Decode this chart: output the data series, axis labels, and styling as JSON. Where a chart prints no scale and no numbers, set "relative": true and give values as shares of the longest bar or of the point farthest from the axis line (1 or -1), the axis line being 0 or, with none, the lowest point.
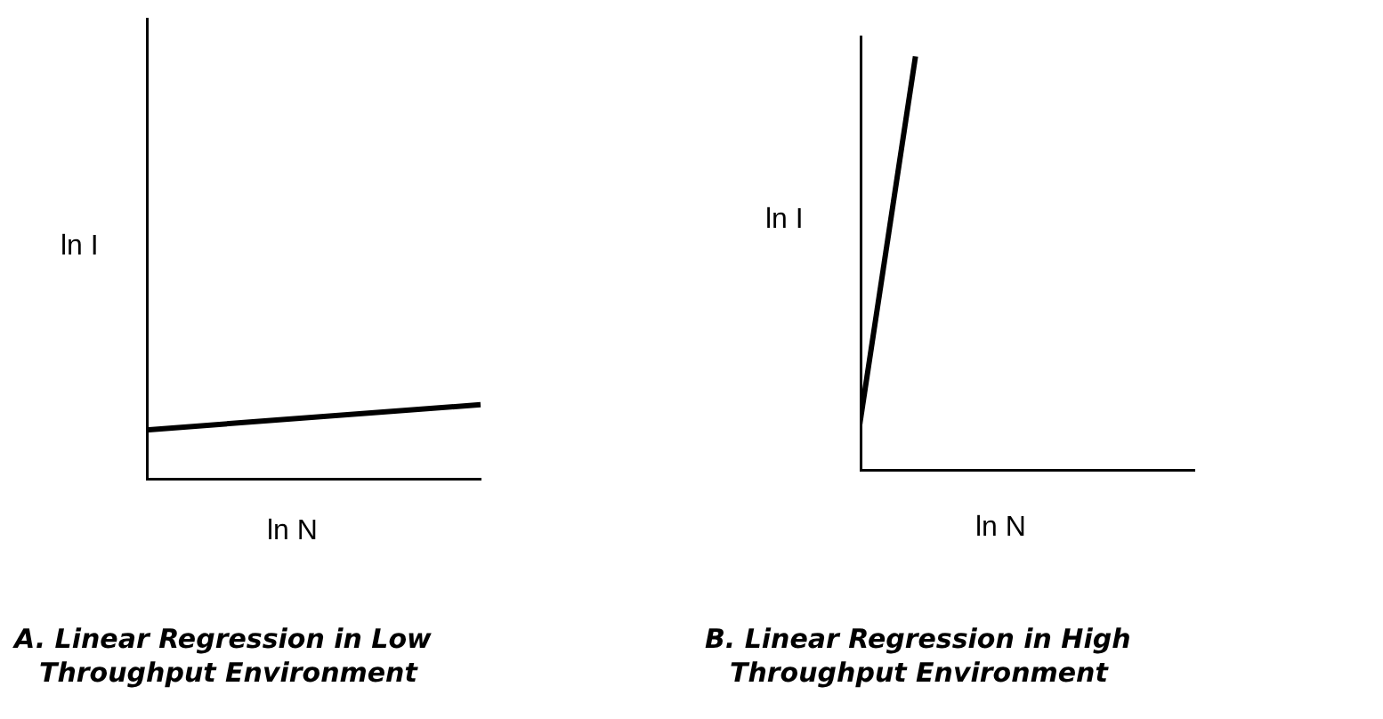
{
  "chart_data": [
    {
      "type": "line",
      "relative": true,
      "xlabel": "ln N",
      "ylabel": "ln I",
      "title": "A. Linear Regression in Low Throughput Environment",
      "categories": [
        null,
        null
      ],
      "series": [
        {
          "color": "#000000",
          "values": [
            0.667,
            1
          ]
        }
      ],
      "marker": "none",
      "grid": false,
      "legend": false,
      "tick_labels": false
    },
    {
      "type": "line",
      "relative": true,
      "xlabel": "ln N",
      "ylabel": "ln I",
      "title": "B. Linear Regression in High Throughput Environment",
      "categories": [
        null,
        null,
        null,
        null,
        null,
        null,
        null
      ],
      "series": [
        {
          "color": "#000000",
          "values": [
            0.113,
            1,
            null,
            null,
            null,
            null,
            null
          ]
        }
      ],
      "marker": "none",
      "grid": false,
      "legend": false,
      "tick_labels": false
    }
  ]
}
